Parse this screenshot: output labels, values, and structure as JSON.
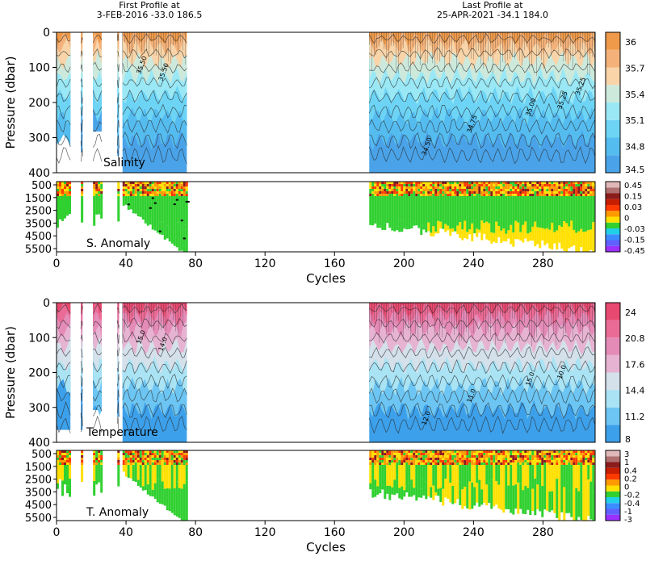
{
  "header": {
    "first_label": "First Profile at",
    "first_value": "3-FEB-2016    -33.0  186.5",
    "last_label": "Last Profile at",
    "last_value": "25-APR-2021   -34.1  184.0"
  },
  "colors": {
    "salinity": [
      "#4aa3e8",
      "#55bcf0",
      "#6dd4f5",
      "#9ae8f5",
      "#cde9dc",
      "#f8d4a8",
      "#f4b27a",
      "#ef9a4a"
    ],
    "temperature": [
      "#3da0ea",
      "#6cc5f2",
      "#a9e3f4",
      "#d4e0ea",
      "#e7b3d2",
      "#e48bb8",
      "#ea6b96",
      "#e84970"
    ],
    "anomaly": [
      "#9b30ff",
      "#6060ff",
      "#3b8dff",
      "#20d0e8",
      "#30d030",
      "#ffe000",
      "#ff9a00",
      "#ff3a00",
      "#c81e00",
      "#8b1c1c",
      "#b07070",
      "#e0b8b8"
    ]
  },
  "chart_data": [
    {
      "type": "heatmap",
      "id": "salinity",
      "label": "Salinity",
      "ylabel": "Pressure (dbar)",
      "xlim": [
        0,
        310
      ],
      "ylim": [
        0,
        400
      ],
      "yticks": [
        "0",
        "100",
        "200",
        "300",
        "400"
      ],
      "colorbar": [
        "36",
        "35.7",
        "35.4",
        "35.1",
        "34.8",
        "34.5"
      ],
      "contour_labels": [
        "35.50",
        "35.50",
        "35.00",
        "35.25",
        "34.75",
        "34.50",
        "35.25"
      ],
      "data_cycles": [
        [
          0,
          8
        ],
        [
          14,
          15
        ],
        [
          21,
          26
        ],
        [
          35,
          36
        ],
        [
          38,
          75
        ],
        [
          180,
          310
        ]
      ]
    },
    {
      "type": "heatmap",
      "id": "s_anomaly",
      "label": "S. Anomaly",
      "xlabel": "Cycles",
      "xlim": [
        0,
        310
      ],
      "ylim": [
        500,
        5500
      ],
      "yticks": [
        "500",
        "1500",
        "2500",
        "3500",
        "4500",
        "5500"
      ],
      "xticks": [
        "0",
        "40",
        "80",
        "120",
        "160",
        "200",
        "240",
        "280"
      ],
      "colorbar": [
        "0.45",
        "0.15",
        "0.03",
        "0",
        "-0.03",
        "-0.15",
        "-0.45"
      ]
    },
    {
      "type": "heatmap",
      "id": "temperature",
      "label": "Temperature",
      "ylabel": "Pressure (dbar)",
      "xlim": [
        0,
        310
      ],
      "ylim": [
        0,
        400
      ],
      "yticks": [
        "0",
        "100",
        "200",
        "300",
        "400"
      ],
      "colorbar": [
        "24",
        "20.8",
        "17.6",
        "14.4",
        "11.2",
        "8"
      ],
      "contour_labels": [
        "15.0",
        "14.0",
        "15.0",
        "10.0",
        "11.0",
        "12.0"
      ],
      "data_cycles": [
        [
          0,
          8
        ],
        [
          14,
          15
        ],
        [
          21,
          26
        ],
        [
          35,
          36
        ],
        [
          38,
          75
        ],
        [
          180,
          310
        ]
      ]
    },
    {
      "type": "heatmap",
      "id": "t_anomaly",
      "label": "T. Anomaly",
      "xlabel": "Cycles",
      "xlim": [
        0,
        310
      ],
      "ylim": [
        500,
        5500
      ],
      "yticks": [
        "500",
        "1500",
        "2500",
        "3500",
        "4500",
        "5500"
      ],
      "xticks": [
        "0",
        "40",
        "80",
        "120",
        "160",
        "200",
        "240",
        "280"
      ],
      "colorbar": [
        "3",
        "1",
        "0.4",
        "0.2",
        "0",
        "-0.2",
        "-0.4",
        "-1",
        "-3"
      ]
    }
  ]
}
